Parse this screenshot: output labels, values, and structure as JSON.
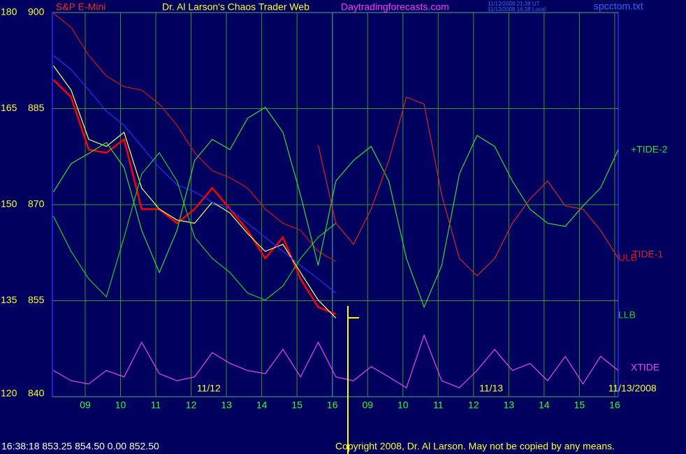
{
  "chart_data": {
    "type": "line",
    "title": "S&P E-Mini",
    "subtitle": "Dr. Al Larson's Chaos Trader Web",
    "site": "Daytradingforecasts.com",
    "timestamps": [
      "11/12/2008 21:38 UT",
      "11/12/2008 16:38 Local"
    ],
    "file": "spcctom.txt",
    "dates": [
      {
        "value": 4.5,
        "label": "11/12"
      },
      {
        "value": 12.5,
        "label": "11/13"
      },
      {
        "value": 16.5,
        "label": "11/13/2008"
      }
    ],
    "status": "16:38:18  853.25 854.50 0.00 852.50",
    "copyright": "Copyright 2008, Dr. Al Larson. May not be copied by any means.",
    "xlim": [
      0.07,
      16.1
    ],
    "xticks": [
      {
        "value": 1,
        "label": "09"
      },
      {
        "value": 2,
        "label": "10"
      },
      {
        "value": 3,
        "label": "11"
      },
      {
        "value": 4,
        "label": "12"
      },
      {
        "value": 5,
        "label": "13"
      },
      {
        "value": 6,
        "label": "14"
      },
      {
        "value": 7,
        "label": "15"
      },
      {
        "value": 8,
        "label": "16"
      },
      {
        "value": 9,
        "label": "09"
      },
      {
        "value": 10,
        "label": "10"
      },
      {
        "value": 11,
        "label": "11"
      },
      {
        "value": 12,
        "label": "12"
      },
      {
        "value": 13,
        "label": "13"
      },
      {
        "value": 14,
        "label": "14"
      },
      {
        "value": 15,
        "label": "15"
      },
      {
        "value": 16,
        "label": "16"
      }
    ],
    "ylim": [
      840,
      900
    ],
    "yticks": [
      900,
      885,
      870,
      855,
      840
    ],
    "y2lim": [
      120,
      180
    ],
    "y2ticks": [
      180,
      165,
      150,
      135,
      120
    ],
    "grid": true,
    "x": [
      0.1,
      0.6,
      1.1,
      1.6,
      2.1,
      2.6,
      3.1,
      3.6,
      4.1,
      4.6,
      5.1,
      5.6,
      6.1,
      6.6,
      7.1,
      7.6,
      8.1,
      8.6,
      9.1,
      9.6,
      10.1,
      10.6,
      11.1,
      11.6,
      12.1,
      12.6,
      13.1,
      13.6,
      14.1,
      14.6,
      15.1,
      15.6,
      16.1
    ],
    "series": [
      {
        "color": "#ff0000",
        "values": [
          889.5,
          886.8,
          878.6,
          878.1,
          880.2,
          869.3,
          869.3,
          867.1,
          869.3,
          872.6,
          869.3,
          866.0,
          861.6,
          864.9,
          858.4,
          854.0,
          852.9,
          null,
          null,
          null,
          null,
          null,
          null,
          null,
          null,
          null,
          null,
          null,
          null,
          null,
          null,
          null,
          null
        ]
      },
      {
        "color": "#ffff66",
        "values": [
          891.7,
          887.9,
          880.2,
          879.1,
          881.3,
          872.6,
          869.3,
          867.6,
          867.1,
          870.4,
          868.7,
          865.5,
          862.7,
          863.8,
          859.4,
          855.1,
          852.3,
          null,
          null,
          null,
          null,
          null,
          null,
          null,
          null,
          null,
          null,
          null,
          null,
          null,
          null,
          null,
          null
        ]
      },
      {
        "color": "#2a2aff",
        "values": [
          893.3,
          891.1,
          887.9,
          884.6,
          882.4,
          879.1,
          875.8,
          873.1,
          872.0,
          870.4,
          869.3,
          867.1,
          864.9,
          862.7,
          860.5,
          858.4,
          856.2,
          null,
          null,
          null,
          null,
          null,
          null,
          null,
          null,
          null,
          null,
          null,
          null,
          null,
          null,
          null,
          null
        ]
      },
      {
        "name": "ULB",
        "color": "#dd1111",
        "values": [
          899.9,
          897.7,
          893.3,
          890.1,
          888.4,
          887.9,
          885.7,
          882.4,
          878.1,
          875.3,
          874.2,
          872.6,
          869.3,
          867.1,
          866.0,
          862.7,
          861.1,
          null,
          null,
          null,
          null,
          null,
          null,
          null,
          null,
          null,
          null,
          null,
          null,
          null,
          null,
          null,
          null
        ]
      },
      {
        "name": "LLB",
        "color": "#22cc22",
        "values": [
          868.2,
          862.7,
          858.4,
          855.6,
          864.9,
          874.8,
          878.1,
          873.7,
          864.9,
          861.6,
          859.4,
          856.2,
          855.1,
          857.3,
          861.6,
          864.9,
          867.1,
          null,
          null,
          null,
          null,
          null,
          null,
          null,
          null,
          null,
          null,
          null,
          null,
          null,
          null,
          null,
          null
        ]
      },
      {
        "name": "+TIDE-2",
        "color": "#33dd33",
        "values": [
          872.0,
          876.4,
          878.0,
          879.7,
          875.8,
          866.0,
          859.4,
          866.0,
          876.9,
          880.2,
          878.6,
          883.5,
          885.2,
          881.3,
          871.5,
          860.5,
          873.7,
          876.9,
          879.1,
          873.7,
          861.6,
          854.0,
          860.5,
          874.8,
          880.8,
          879.1,
          873.7,
          869.3,
          867.1,
          866.6,
          869.8,
          872.6,
          878.6
        ]
      },
      {
        "name": "TIDE-1",
        "color": "#dd2222",
        "values": [
          null,
          null,
          null,
          null,
          null,
          null,
          null,
          null,
          null,
          null,
          null,
          null,
          null,
          null,
          null,
          879.3,
          867.1,
          863.8,
          869.3,
          876.9,
          886.8,
          885.7,
          871.5,
          861.6,
          858.9,
          861.6,
          867.1,
          870.9,
          873.7,
          869.8,
          869.3,
          866.0,
          861.6
        ]
      },
      {
        "name": "XTIDE",
        "color": "#ee44ee",
        "values": [
          844.1,
          842.5,
          842.0,
          844.1,
          843.1,
          848.5,
          843.6,
          842.5,
          843.1,
          846.9,
          845.2,
          844.1,
          843.6,
          847.4,
          843.1,
          848.5,
          843.1,
          842.5,
          844.7,
          843.1,
          841.4,
          849.6,
          842.5,
          841.4,
          844.1,
          847.4,
          844.1,
          845.2,
          842.5,
          846.3,
          842.0,
          846.3,
          844.1
        ]
      }
    ]
  }
}
